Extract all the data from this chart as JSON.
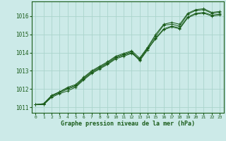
{
  "background_color": "#cceae8",
  "grid_color": "#aad4cc",
  "line_color": "#1a5c1a",
  "xlabel": "Graphe pression niveau de la mer (hPa)",
  "xlim": [
    -0.5,
    23.5
  ],
  "ylim": [
    1010.7,
    1016.8
  ],
  "yticks": [
    1011,
    1012,
    1013,
    1014,
    1015,
    1016
  ],
  "xticks": [
    0,
    1,
    2,
    3,
    4,
    5,
    6,
    7,
    8,
    9,
    10,
    11,
    12,
    13,
    14,
    15,
    16,
    17,
    18,
    19,
    20,
    21,
    22,
    23
  ],
  "series": [
    [
      1011.15,
      1011.15,
      1011.55,
      1011.75,
      1011.9,
      1012.1,
      1012.5,
      1012.85,
      1013.1,
      1013.35,
      1013.65,
      1013.8,
      1013.95,
      1013.65,
      1014.25,
      1014.9,
      1015.5,
      1015.55,
      1015.45,
      1016.1,
      1016.3,
      1016.35,
      1016.15,
      1016.2
    ],
    [
      1011.15,
      1011.15,
      1011.6,
      1011.8,
      1012.0,
      1012.15,
      1012.55,
      1012.9,
      1013.15,
      1013.4,
      1013.7,
      1013.85,
      1014.0,
      1013.55,
      1014.15,
      1014.8,
      1015.3,
      1015.45,
      1015.35,
      1015.95,
      1016.15,
      1016.2,
      1016.05,
      1016.1
    ],
    [
      1011.15,
      1011.2,
      1011.65,
      1011.85,
      1012.05,
      1012.2,
      1012.6,
      1012.95,
      1013.2,
      1013.45,
      1013.75,
      1013.9,
      1014.05,
      1013.6,
      1014.2,
      1014.75,
      1015.25,
      1015.4,
      1015.3,
      1015.9,
      1016.1,
      1016.15,
      1016.0,
      1016.05
    ],
    [
      1011.15,
      1011.2,
      1011.65,
      1011.85,
      1012.1,
      1012.25,
      1012.65,
      1013.0,
      1013.25,
      1013.5,
      1013.8,
      1013.95,
      1014.1,
      1013.7,
      1014.3,
      1015.0,
      1015.55,
      1015.65,
      1015.55,
      1016.15,
      1016.35,
      1016.4,
      1016.2,
      1016.25
    ]
  ]
}
